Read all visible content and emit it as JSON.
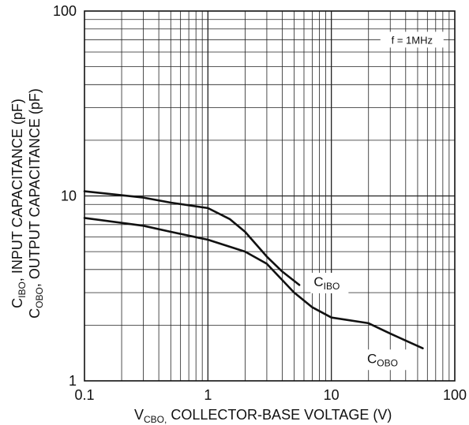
{
  "chart_data": {
    "type": "line",
    "x_scale": "log",
    "y_scale": "log",
    "xlim": [
      0.1,
      100
    ],
    "ylim": [
      1,
      100
    ],
    "grid": true,
    "x_ticks": [
      "0.1",
      "1",
      "10",
      "100"
    ],
    "y_ticks": [
      "1",
      "10",
      "100"
    ],
    "xlabel": {
      "main": "V",
      "sub": "CBO,",
      "rest": " COLLECTOR-BASE VOLTAGE (V)"
    },
    "ylabel": {
      "line1": {
        "c": "C",
        "sub": "IBO",
        "rest": ", INPUT CAPACITANCE (pF)"
      },
      "line2": {
        "c": "C",
        "sub": "OBO",
        "rest": ", OUTPUT CAPACITANCE (pF)"
      }
    },
    "annotation": "f = 1MHz",
    "series": [
      {
        "name": "CIBO",
        "label": {
          "c": "C",
          "sub": "IBO"
        },
        "x": [
          0.1,
          0.3,
          0.5,
          1.0,
          1.5,
          2.0,
          3.0,
          4.0,
          5.5
        ],
        "y": [
          10.6,
          9.8,
          9.2,
          8.6,
          7.5,
          6.4,
          4.7,
          3.9,
          3.3
        ]
      },
      {
        "name": "COBO",
        "label": {
          "c": "C",
          "sub": "OBO"
        },
        "x": [
          0.1,
          0.3,
          0.5,
          1.0,
          2.0,
          3.0,
          5.0,
          7.0,
          10,
          20,
          30,
          55
        ],
        "y": [
          7.6,
          6.9,
          6.4,
          5.8,
          5.0,
          4.3,
          3.0,
          2.5,
          2.2,
          2.05,
          1.8,
          1.5
        ]
      }
    ]
  }
}
